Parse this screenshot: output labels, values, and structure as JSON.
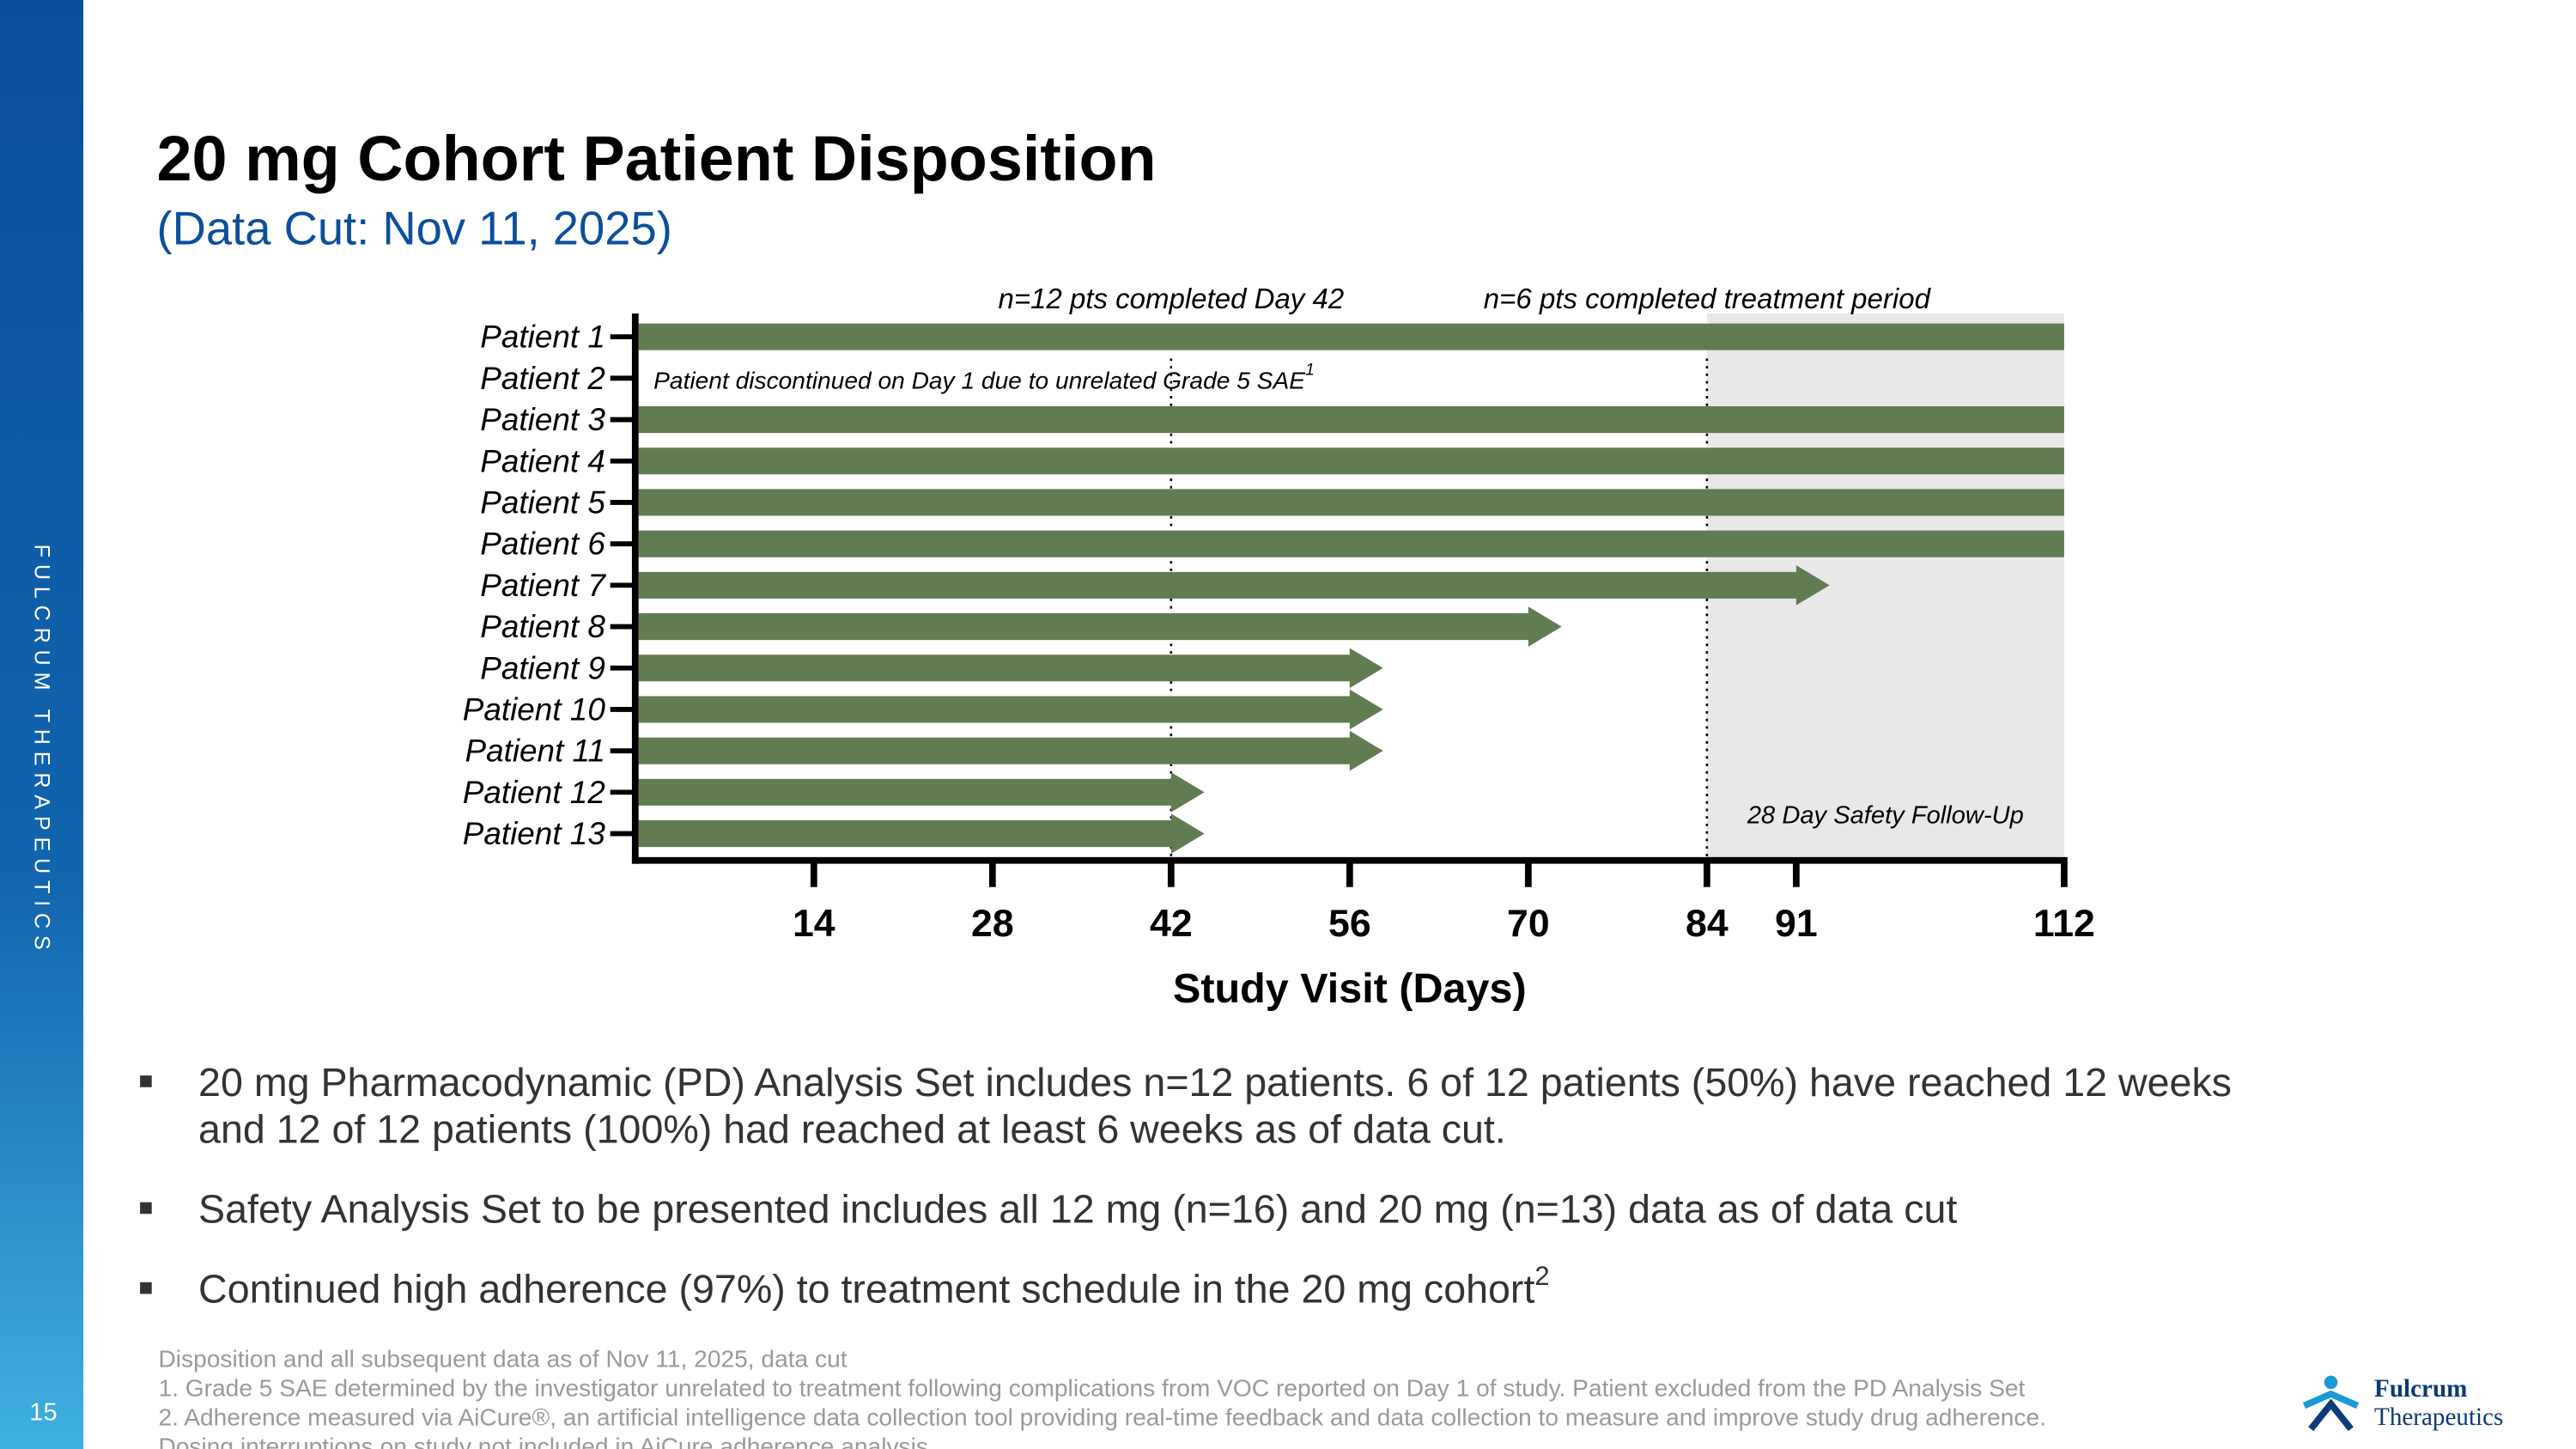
{
  "sidebar_text": "FULCRUM THERAPEUTICS",
  "page_number": "15",
  "title": "20 mg Cohort Patient Disposition",
  "subtitle": "(Data Cut: Nov 11, 2025)",
  "chart_data": {
    "type": "bar",
    "orientation": "horizontal",
    "categories": [
      "Patient 1",
      "Patient 2",
      "Patient 3",
      "Patient 4",
      "Patient 5",
      "Patient 6",
      "Patient 7",
      "Patient 8",
      "Patient 9",
      "Patient 10",
      "Patient 11",
      "Patient 12",
      "Patient 13"
    ],
    "values": [
      112,
      null,
      112,
      112,
      112,
      112,
      91,
      70,
      56,
      56,
      56,
      42,
      42
    ],
    "color": "#617c51",
    "xlabel": "Study Visit (Days)",
    "xlim": [
      0,
      112
    ],
    "xticks": [
      14,
      28,
      42,
      56,
      70,
      84,
      91,
      112
    ],
    "vlines": [
      42,
      84
    ],
    "shaded_xrange": [
      84,
      112
    ],
    "shade_color": "#e8e8e8",
    "annotations": [
      "n=12 pts completed Day 42",
      "n=6 pts completed treatment period",
      "28 Day Safety Follow-Up"
    ],
    "discontinued_note": {
      "text": "Patient discontinued on Day 1 due to unrelated Grade 5 SAE",
      "sup": "1"
    }
  },
  "bullets": [
    {
      "lines": [
        "20 mg Pharmacodynamic (PD) Analysis Set includes n=12 patients. 6 of 12 patients (50%) have reached 12 weeks",
        "and 12 of 12 patients (100%) had reached at least 6 weeks as of data cut."
      ]
    },
    {
      "lines": [
        "Safety Analysis Set to be presented includes all 12 mg (n=16) and 20 mg (n=13) data as of data cut"
      ]
    },
    {
      "lines": [
        "Continued high adherence (97%) to treatment schedule in the 20 mg cohort"
      ],
      "sup": "2"
    }
  ],
  "footnotes": [
    "Disposition and all subsequent data as of Nov 11, 2025, data cut",
    "1. Grade 5 SAE determined by the investigator unrelated to treatment following complications from VOC reported on Day 1 of study. Patient excluded from the PD Analysis Set",
    "2. Adherence measured via AiCure®, an artificial intelligence data collection tool providing real-time feedback and data collection to measure and improve study drug adherence.",
    "Dosing interruptions on study not included in AiCure adherence analysis"
  ],
  "logo": {
    "line1": "Fulcrum",
    "line2": "Therapeutics"
  }
}
